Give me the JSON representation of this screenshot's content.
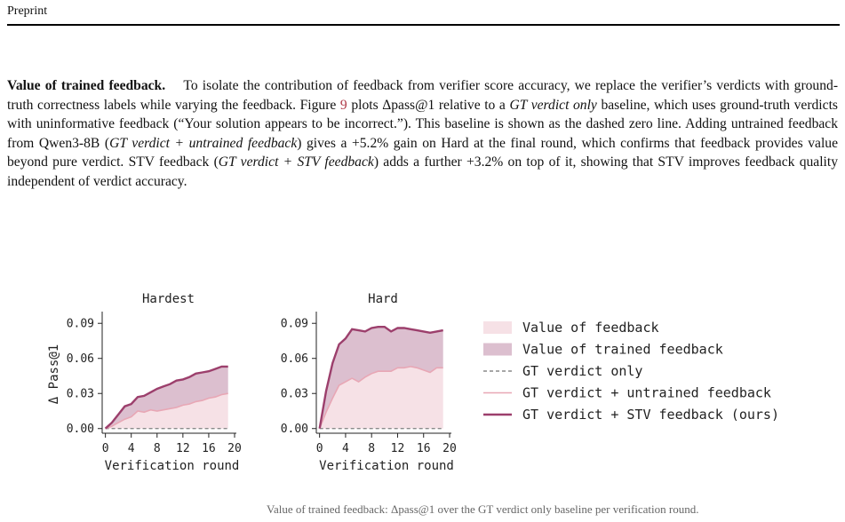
{
  "header": {
    "label": "Preprint"
  },
  "paragraph": {
    "heading": "Value of trained feedback.",
    "s1": "To isolate the contribution of feedback from verifier score accuracy, we replace the verifier’s verdicts with ground-truth correctness labels while varying the feedback. Figure",
    "fig_ref": "9",
    "s2": "plots Δpass@1 relative to a",
    "s2_em": "GT verdict only",
    "s3": "baseline, which uses ground-truth verdicts with uninformative feedback (“Your solution appears to be incorrect.”). This baseline is shown as the dashed zero line. Adding untrained feedback from Qwen3-8B (",
    "s3_em": "GT verdict + untrained feedback",
    "s4": ") gives a +5.2% gain on Hard at the final round, which confirms that feedback provides value beyond pure verdict. STV feedback (",
    "s4_em": "GT verdict + STV feedback",
    "s5": ") adds a further +3.2% on top of it, showing that STV improves feedback quality independent of verdict accuracy."
  },
  "colors": {
    "value_of_feedback": "#f6e1e6",
    "value_of_trained_feedback": "#dcbfcf",
    "untrained_line": "#e8a7b5",
    "stv_line": "#9c3f6c",
    "baseline": "#8a8a8a"
  },
  "legend": [
    {
      "key": "value-of-feedback",
      "label": "Value of feedback",
      "kind": "patch",
      "color": "#f6e1e6"
    },
    {
      "key": "value-of-trained-feedback",
      "label": "Value of trained feedback",
      "kind": "patch",
      "color": "#dcbfcf"
    },
    {
      "key": "gt-verdict-only",
      "label": "GT verdict only",
      "kind": "dashed",
      "color": "#8a8a8a"
    },
    {
      "key": "gt-untrained",
      "label": "GT verdict + untrained feedback",
      "kind": "line",
      "color": "#e8a7b5"
    },
    {
      "key": "gt-stv",
      "label": "GT verdict + STV feedback (ours)",
      "kind": "line",
      "color": "#9c3f6c"
    }
  ],
  "caption": "Value of trained feedback: Δpass@1 over the GT verdict only baseline per verification round.",
  "chart_data": [
    {
      "type": "area",
      "title": "Hardest",
      "xlabel": "Verification round",
      "ylabel": "Δ Pass@1",
      "xlim": [
        -0.5,
        20
      ],
      "ylim": [
        -0.004,
        0.097
      ],
      "xticks": [
        0,
        4,
        8,
        12,
        16,
        20
      ],
      "yticks": [
        0.0,
        0.03,
        0.06,
        0.09
      ],
      "ytick_labels": [
        "0.00",
        "0.03",
        "0.06",
        "0.09"
      ],
      "x": [
        0,
        1,
        2,
        3,
        4,
        5,
        6,
        7,
        8,
        9,
        10,
        11,
        12,
        13,
        14,
        15,
        16,
        17,
        18,
        19
      ],
      "series": [
        {
          "name": "GT verdict only",
          "values": [
            0,
            0,
            0,
            0,
            0,
            0,
            0,
            0,
            0,
            0,
            0,
            0,
            0,
            0,
            0,
            0,
            0,
            0,
            0,
            0
          ]
        },
        {
          "name": "GT verdict + untrained feedback",
          "values": [
            0,
            0.002,
            0.005,
            0.008,
            0.01,
            0.015,
            0.014,
            0.016,
            0.015,
            0.016,
            0.017,
            0.018,
            0.02,
            0.021,
            0.023,
            0.024,
            0.026,
            0.027,
            0.029,
            0.03
          ]
        },
        {
          "name": "GT verdict + STV feedback (ours)",
          "values": [
            0,
            0.005,
            0.012,
            0.019,
            0.021,
            0.027,
            0.028,
            0.031,
            0.034,
            0.036,
            0.038,
            0.041,
            0.042,
            0.044,
            0.047,
            0.048,
            0.049,
            0.051,
            0.053,
            0.053
          ]
        }
      ]
    },
    {
      "type": "area",
      "title": "Hard",
      "xlabel": "Verification round",
      "ylabel": "",
      "xlim": [
        -0.5,
        20
      ],
      "ylim": [
        -0.004,
        0.097
      ],
      "xticks": [
        0,
        4,
        8,
        12,
        16,
        20
      ],
      "yticks": [
        0.0,
        0.03,
        0.06,
        0.09
      ],
      "ytick_labels": [
        "0.00",
        "0.03",
        "0.06",
        "0.09"
      ],
      "x": [
        0,
        1,
        2,
        3,
        4,
        5,
        6,
        7,
        8,
        9,
        10,
        11,
        12,
        13,
        14,
        15,
        16,
        17,
        18,
        19
      ],
      "series": [
        {
          "name": "GT verdict only",
          "values": [
            0,
            0,
            0,
            0,
            0,
            0,
            0,
            0,
            0,
            0,
            0,
            0,
            0,
            0,
            0,
            0,
            0,
            0,
            0,
            0
          ]
        },
        {
          "name": "GT verdict + untrained feedback",
          "values": [
            0,
            0.014,
            0.026,
            0.037,
            0.04,
            0.043,
            0.04,
            0.044,
            0.047,
            0.049,
            0.049,
            0.049,
            0.052,
            0.052,
            0.053,
            0.052,
            0.05,
            0.048,
            0.052,
            0.052
          ]
        },
        {
          "name": "GT verdict + STV feedback (ours)",
          "values": [
            0,
            0.032,
            0.056,
            0.072,
            0.077,
            0.085,
            0.084,
            0.083,
            0.086,
            0.087,
            0.087,
            0.083,
            0.086,
            0.086,
            0.085,
            0.084,
            0.083,
            0.082,
            0.083,
            0.084
          ]
        }
      ]
    }
  ]
}
